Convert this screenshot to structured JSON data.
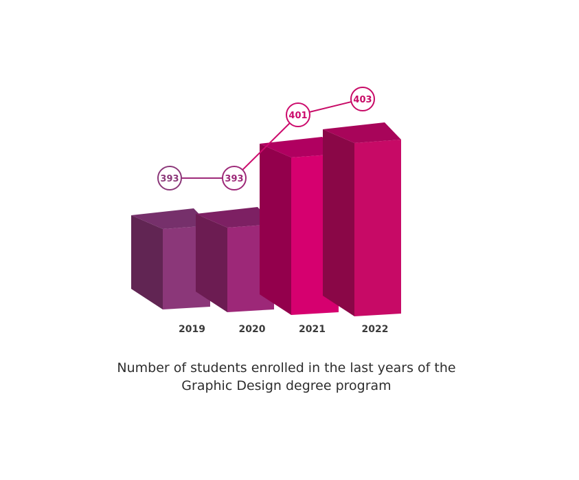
{
  "chart_data": {
    "type": "bar",
    "title_lines": [
      "Number of students enrolled in the last years of the",
      "Graphic Design degree program"
    ],
    "categories": [
      "2019",
      "2020",
      "2021",
      "2022"
    ],
    "values": [
      393,
      393,
      401,
      403
    ],
    "labels": [
      "393",
      "393",
      "401",
      "403"
    ],
    "colors": {
      "front": [
        "#8b3779",
        "#9d2878",
        "#d6006f",
        "#c70a66"
      ],
      "side": [
        "#612553",
        "#6c1c52",
        "#93004c",
        "#8a0747"
      ],
      "top": [
        "#76306b",
        "#7d2063",
        "#b00060",
        "#a8055a"
      ],
      "line": [
        "#8b3779",
        "#9d2878",
        "#cc0a6c",
        "#c70a66"
      ]
    },
    "xlabel": "",
    "ylabel": "",
    "legend": "none",
    "grid": false,
    "style": "3d-bars-with-line"
  }
}
